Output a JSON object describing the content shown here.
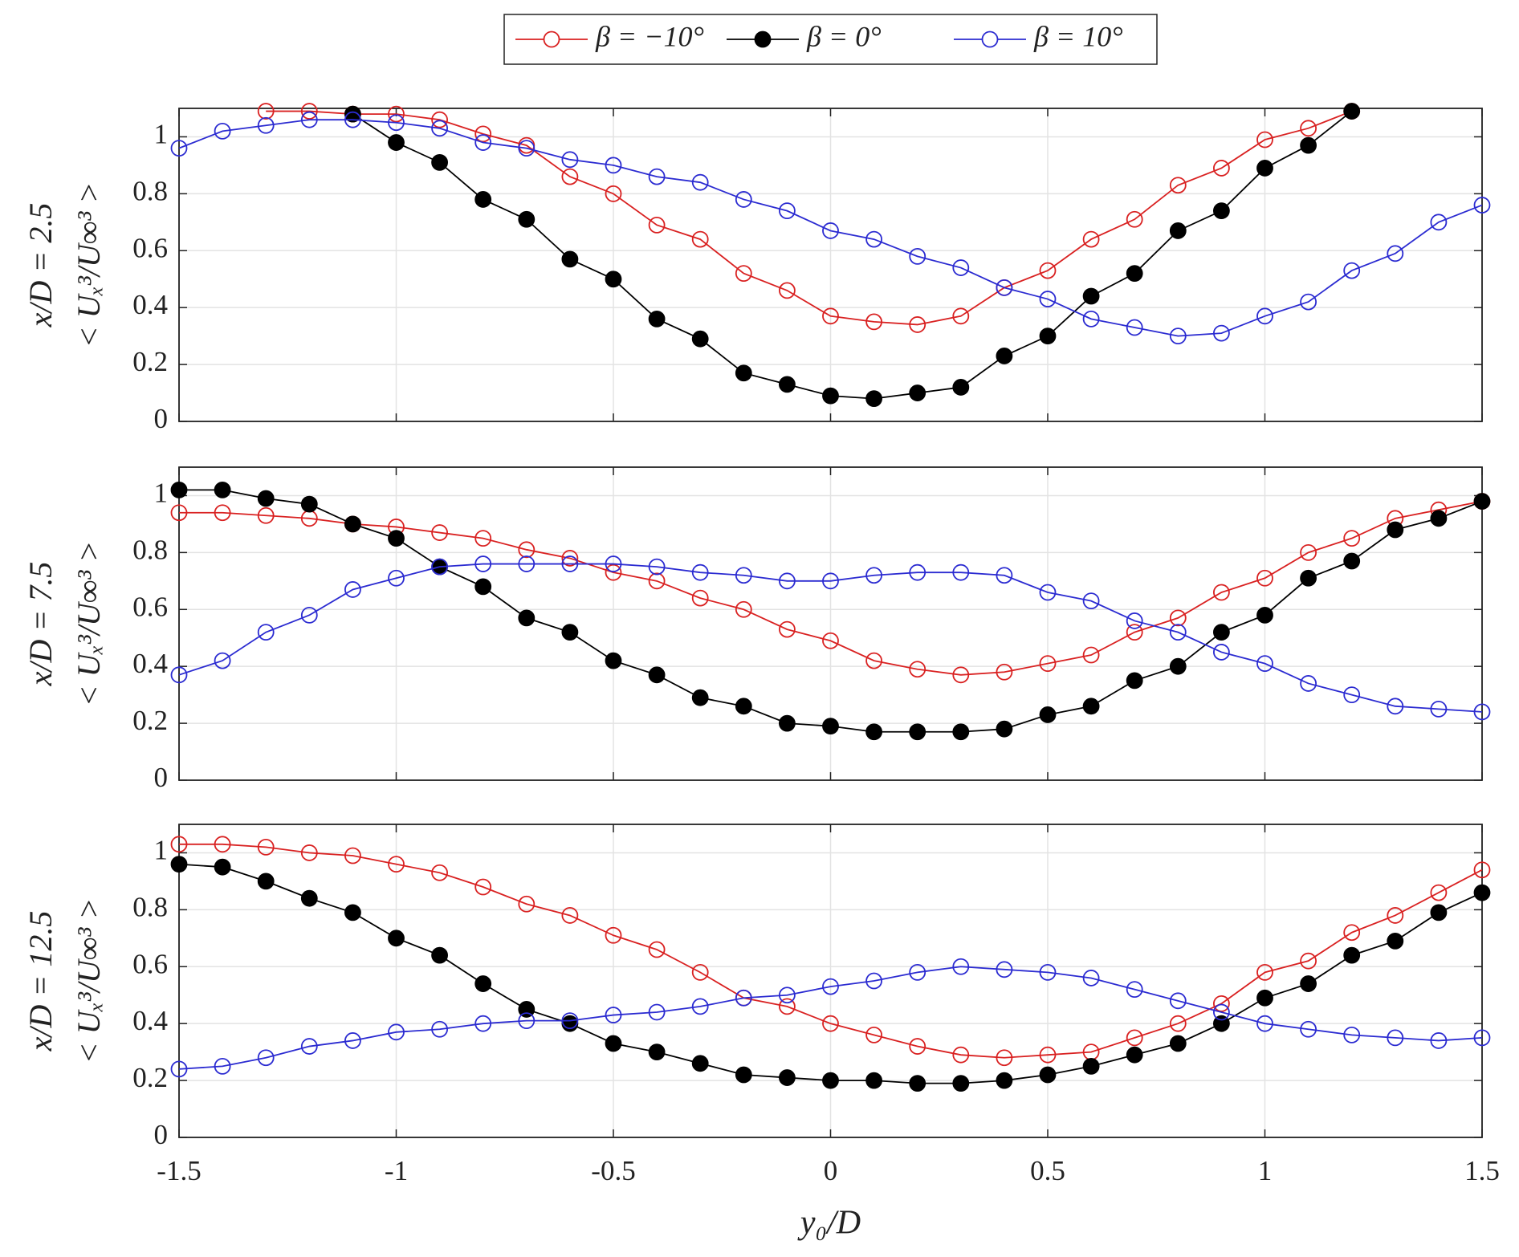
{
  "chart_data": [
    {
      "type": "line",
      "x": [
        -1.5,
        -1.4,
        -1.3,
        -1.2,
        -1.1,
        -1.0,
        -0.9,
        -0.8,
        -0.7,
        -0.6,
        -0.5,
        -0.4,
        -0.3,
        -0.2,
        -0.1,
        0,
        0.1,
        0.2,
        0.3,
        0.4,
        0.5,
        0.6,
        0.7,
        0.8,
        0.9,
        1.0,
        1.1,
        1.2,
        1.3,
        1.4,
        1.5
      ],
      "ylabel": [
        "x/D = 2.5",
        "< Uₓ³/U∞³ >"
      ],
      "xlim": [
        -1.5,
        1.5
      ],
      "xticks": [
        -1.5,
        -1,
        -0.5,
        0,
        0.5,
        1,
        1.5
      ],
      "ylim": [
        0,
        1.1
      ],
      "yticks": [
        0,
        0.2,
        0.4,
        0.6,
        0.8,
        1
      ],
      "grid": true,
      "legend": "top",
      "series": [
        {
          "name": "β = −10°",
          "color": "#d92121",
          "marker_fill": "none",
          "values": [
            null,
            null,
            1.09,
            1.09,
            1.08,
            1.08,
            1.06,
            1.01,
            0.97,
            0.86,
            0.8,
            0.69,
            0.64,
            0.52,
            0.46,
            0.37,
            0.35,
            0.34,
            0.37,
            0.47,
            0.53,
            0.64,
            0.71,
            0.83,
            0.89,
            0.99,
            1.03,
            1.09,
            null,
            null,
            null
          ]
        },
        {
          "name": "β = 0°",
          "color": "#000000",
          "marker_fill": "#000000",
          "values": [
            null,
            null,
            null,
            null,
            1.08,
            0.98,
            0.91,
            0.78,
            0.71,
            0.57,
            0.5,
            0.36,
            0.29,
            0.17,
            0.13,
            0.09,
            0.08,
            0.1,
            0.12,
            0.23,
            0.3,
            0.44,
            0.52,
            0.67,
            0.74,
            0.89,
            0.97,
            1.09,
            null,
            null,
            null
          ]
        },
        {
          "name": "β = 10°",
          "color": "#2b2bd1",
          "marker_fill": "none",
          "values": [
            0.96,
            1.02,
            1.04,
            1.06,
            1.06,
            1.05,
            1.03,
            0.98,
            0.96,
            0.92,
            0.9,
            0.86,
            0.84,
            0.78,
            0.74,
            0.67,
            0.64,
            0.58,
            0.54,
            0.47,
            0.43,
            0.36,
            0.33,
            0.3,
            0.31,
            0.37,
            0.42,
            0.53,
            0.59,
            0.7,
            0.76
          ]
        }
      ]
    },
    {
      "type": "line",
      "x": [
        -1.5,
        -1.4,
        -1.3,
        -1.2,
        -1.1,
        -1.0,
        -0.9,
        -0.8,
        -0.7,
        -0.6,
        -0.5,
        -0.4,
        -0.3,
        -0.2,
        -0.1,
        0,
        0.1,
        0.2,
        0.3,
        0.4,
        0.5,
        0.6,
        0.7,
        0.8,
        0.9,
        1.0,
        1.1,
        1.2,
        1.3,
        1.4,
        1.5
      ],
      "ylabel": [
        "x/D = 7.5",
        "< Uₓ³/U∞³ >"
      ],
      "xlim": [
        -1.5,
        1.5
      ],
      "xticks": [
        -1.5,
        -1,
        -0.5,
        0,
        0.5,
        1,
        1.5
      ],
      "ylim": [
        0,
        1.1
      ],
      "yticks": [
        0,
        0.2,
        0.4,
        0.6,
        0.8,
        1
      ],
      "grid": true,
      "series": [
        {
          "color": "#d92121",
          "marker_fill": "none",
          "values": [
            0.94,
            0.94,
            0.93,
            0.92,
            0.9,
            0.89,
            0.87,
            0.85,
            0.81,
            0.78,
            0.73,
            0.7,
            0.64,
            0.6,
            0.53,
            0.49,
            0.42,
            0.39,
            0.37,
            0.38,
            0.41,
            0.44,
            0.52,
            0.57,
            0.66,
            0.71,
            0.8,
            0.85,
            0.92,
            0.95,
            0.98
          ]
        },
        {
          "color": "#000000",
          "marker_fill": "#000000",
          "values": [
            1.02,
            1.02,
            0.99,
            0.97,
            0.9,
            0.85,
            0.75,
            0.68,
            0.57,
            0.52,
            0.42,
            0.37,
            0.29,
            0.26,
            0.2,
            0.19,
            0.17,
            0.17,
            0.17,
            0.18,
            0.23,
            0.26,
            0.35,
            0.4,
            0.52,
            0.58,
            0.71,
            0.77,
            0.88,
            0.92,
            0.98
          ]
        },
        {
          "color": "#2b2bd1",
          "marker_fill": "none",
          "values": [
            0.37,
            0.42,
            0.52,
            0.58,
            0.67,
            0.71,
            0.75,
            0.76,
            0.76,
            0.76,
            0.76,
            0.75,
            0.73,
            0.72,
            0.7,
            0.7,
            0.72,
            0.73,
            0.73,
            0.72,
            0.66,
            0.63,
            0.56,
            0.52,
            0.45,
            0.41,
            0.34,
            0.3,
            0.26,
            0.25,
            0.24
          ]
        }
      ]
    },
    {
      "type": "line",
      "x": [
        -1.5,
        -1.4,
        -1.3,
        -1.2,
        -1.1,
        -1.0,
        -0.9,
        -0.8,
        -0.7,
        -0.6,
        -0.5,
        -0.4,
        -0.3,
        -0.2,
        -0.1,
        0,
        0.1,
        0.2,
        0.3,
        0.4,
        0.5,
        0.6,
        0.7,
        0.8,
        0.9,
        1.0,
        1.1,
        1.2,
        1.3,
        1.4,
        1.5
      ],
      "ylabel": [
        "x/D = 12.5",
        "< Uₓ³/U∞³ >"
      ],
      "xlabel": "y₀/D",
      "xlim": [
        -1.5,
        1.5
      ],
      "xticks": [
        -1.5,
        -1,
        -0.5,
        0,
        0.5,
        1,
        1.5
      ],
      "xtick_labels": true,
      "ylim": [
        0,
        1.1
      ],
      "yticks": [
        0,
        0.2,
        0.4,
        0.6,
        0.8,
        1
      ],
      "grid": true,
      "series": [
        {
          "color": "#d92121",
          "marker_fill": "none",
          "values": [
            1.03,
            1.03,
            1.02,
            1.0,
            0.99,
            0.96,
            0.93,
            0.88,
            0.82,
            0.78,
            0.71,
            0.66,
            0.58,
            0.49,
            0.46,
            0.4,
            0.36,
            0.32,
            0.29,
            0.28,
            0.29,
            0.3,
            0.35,
            0.4,
            0.47,
            0.58,
            0.62,
            0.72,
            0.78,
            0.86,
            0.94
          ]
        },
        {
          "color": "#000000",
          "marker_fill": "#000000",
          "values": [
            0.96,
            0.95,
            0.9,
            0.84,
            0.79,
            0.7,
            0.64,
            0.54,
            0.45,
            0.4,
            0.33,
            0.3,
            0.26,
            0.22,
            0.21,
            0.2,
            0.2,
            0.19,
            0.19,
            0.2,
            0.22,
            0.25,
            0.29,
            0.33,
            0.4,
            0.49,
            0.54,
            0.64,
            0.69,
            0.79,
            0.86
          ]
        },
        {
          "color": "#2b2bd1",
          "marker_fill": "none",
          "values": [
            0.24,
            0.25,
            0.28,
            0.32,
            0.34,
            0.37,
            0.38,
            0.4,
            0.41,
            0.41,
            0.43,
            0.44,
            0.46,
            0.49,
            0.5,
            0.53,
            0.55,
            0.58,
            0.6,
            0.59,
            0.58,
            0.56,
            0.52,
            0.48,
            0.44,
            0.4,
            0.38,
            0.36,
            0.35,
            0.34,
            0.35
          ]
        }
      ]
    }
  ]
}
